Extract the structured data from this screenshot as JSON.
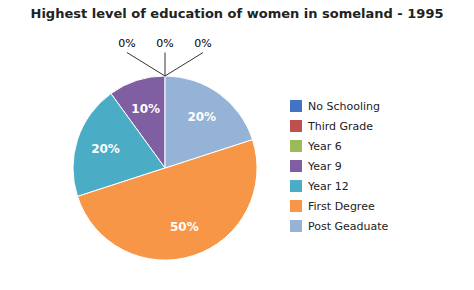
{
  "chart_data": {
    "type": "pie",
    "title": "Highest level of education of women in someland - 1995",
    "categories": [
      "No Schooling",
      "Third Grade",
      "Year 6",
      "Year 9",
      "Year 12",
      "First Degree",
      "Post Geaduate"
    ],
    "values": [
      0,
      0,
      0,
      10,
      20,
      50,
      20
    ],
    "value_labels": [
      "0%",
      "0%",
      "0%",
      "10%",
      "20%",
      "50%",
      "20%"
    ],
    "colors": [
      "#4472C4",
      "#C0504D",
      "#9BBB59",
      "#7F5EA2",
      "#4BACC6",
      "#F79646",
      "#95B3D7"
    ],
    "data_labels": true,
    "legend": "right"
  }
}
